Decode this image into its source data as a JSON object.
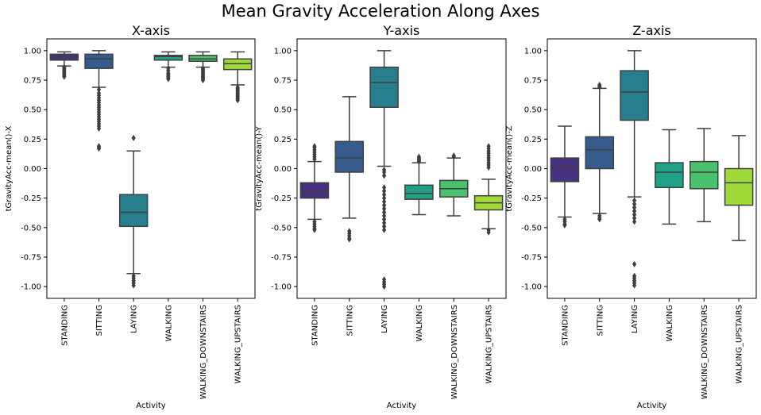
{
  "figure": {
    "title": "Mean Gravity Acceleration Along Axes"
  },
  "chart_data": [
    {
      "type": "box",
      "title": "X-axis",
      "xlabel": "Activity",
      "ylabel": "tGravityAcc-mean()-X",
      "ylim": [
        -1.1,
        1.1
      ],
      "yticks": [
        "-1.00",
        "-0.75",
        "-0.50",
        "-0.25",
        "0.00",
        "0.25",
        "0.50",
        "0.75",
        "1.00"
      ],
      "categories": [
        "STANDING",
        "SITTING",
        "LAYING",
        "WALKING",
        "WALKING_DOWNSTAIRS",
        "WALKING_UPSTAIRS"
      ],
      "colors": [
        "#46327e",
        "#365c8d",
        "#277f8e",
        "#1fa187",
        "#4ac16d",
        "#a0da39"
      ],
      "boxes": [
        {
          "q1": 0.92,
          "median": 0.95,
          "q3": 0.97,
          "whislo": 0.87,
          "whishi": 0.99,
          "fliers": [
            0.86,
            0.85,
            0.84,
            0.83,
            0.82,
            0.81,
            0.8,
            0.79,
            0.78
          ]
        },
        {
          "q1": 0.85,
          "median": 0.93,
          "q3": 0.97,
          "whislo": 0.69,
          "whishi": 1.0,
          "fliers": [
            0.67,
            0.64,
            0.62,
            0.6,
            0.58,
            0.56,
            0.54,
            0.52,
            0.5,
            0.48,
            0.46,
            0.44,
            0.42,
            0.4,
            0.38,
            0.36,
            0.34,
            0.19,
            0.18,
            0.17
          ]
        },
        {
          "q1": -0.49,
          "median": -0.37,
          "q3": -0.22,
          "whislo": -0.89,
          "whishi": 0.15,
          "fliers": [
            0.26,
            -0.91,
            -0.93,
            -0.95,
            -0.97,
            -0.99
          ]
        },
        {
          "q1": 0.92,
          "median": 0.95,
          "q3": 0.96,
          "whislo": 0.86,
          "whishi": 0.99,
          "fliers": [
            0.85,
            0.83,
            0.81,
            0.8,
            0.79,
            0.78,
            0.77,
            0.76
          ]
        },
        {
          "q1": 0.91,
          "median": 0.93,
          "q3": 0.96,
          "whislo": 0.86,
          "whishi": 0.99,
          "fliers": [
            0.85,
            0.84,
            0.83,
            0.82,
            0.81,
            0.8,
            0.79,
            0.78,
            0.77,
            0.76,
            0.75
          ]
        },
        {
          "q1": 0.84,
          "median": 0.89,
          "q3": 0.93,
          "whislo": 0.71,
          "whishi": 0.99,
          "fliers": [
            0.69,
            0.68,
            0.67,
            0.66,
            0.65,
            0.64,
            0.63,
            0.62,
            0.61,
            0.6,
            0.59,
            0.58
          ]
        }
      ]
    },
    {
      "type": "box",
      "title": "Y-axis",
      "xlabel": "Activity",
      "ylabel": "tGravityAcc-mean()-Y",
      "ylim": [
        -1.1,
        1.1
      ],
      "yticks": [
        "-1.00",
        "-0.75",
        "-0.50",
        "-0.25",
        "0.00",
        "0.25",
        "0.50",
        "0.75",
        "1.00"
      ],
      "categories": [
        "STANDING",
        "SITTING",
        "LAYING",
        "WALKING",
        "WALKING_DOWNSTAIRS",
        "WALKING_UPSTAIRS"
      ],
      "colors": [
        "#46327e",
        "#365c8d",
        "#277f8e",
        "#1fa187",
        "#4ac16d",
        "#a0da39"
      ],
      "boxes": [
        {
          "q1": -0.25,
          "median": -0.19,
          "q3": -0.12,
          "whislo": -0.43,
          "whishi": 0.06,
          "fliers": [
            0.08,
            0.1,
            0.12,
            0.14,
            0.16,
            0.18,
            0.19,
            -0.45,
            -0.47,
            -0.49,
            -0.51,
            -0.52
          ]
        },
        {
          "q1": -0.03,
          "median": 0.09,
          "q3": 0.23,
          "whislo": -0.42,
          "whishi": 0.61,
          "fliers": [
            -0.53,
            -0.55,
            -0.57,
            -0.59,
            -0.6
          ]
        },
        {
          "q1": 0.52,
          "median": 0.73,
          "q3": 0.86,
          "whislo": 0.02,
          "whishi": 1.0,
          "fliers": [
            -0.01,
            -0.03,
            -0.06,
            -0.16,
            -0.19,
            -0.22,
            -0.25,
            -0.28,
            -0.31,
            -0.34,
            -0.37,
            -0.4,
            -0.43,
            -0.46,
            -0.49,
            -0.52,
            -0.94,
            -0.96,
            -0.98,
            -1.0
          ]
        },
        {
          "q1": -0.26,
          "median": -0.21,
          "q3": -0.14,
          "whislo": -0.39,
          "whishi": 0.05,
          "fliers": [
            0.06,
            0.07,
            0.08,
            0.09,
            0.1
          ]
        },
        {
          "q1": -0.24,
          "median": -0.17,
          "q3": -0.1,
          "whislo": -0.4,
          "whishi": 0.09,
          "fliers": [
            0.1,
            0.11
          ]
        },
        {
          "q1": -0.35,
          "median": -0.29,
          "q3": -0.23,
          "whislo": -0.51,
          "whishi": -0.09,
          "fliers": [
            0.19,
            0.17,
            0.15,
            0.13,
            0.11,
            0.09,
            0.07,
            0.05,
            0.03,
            0.01,
            -0.52,
            -0.54
          ]
        }
      ]
    },
    {
      "type": "box",
      "title": "Z-axis",
      "xlabel": "Activity",
      "ylabel": "tGravityAcc-mean()-Z",
      "ylim": [
        -1.1,
        1.1
      ],
      "yticks": [
        "-1.00",
        "-0.75",
        "-0.50",
        "-0.25",
        "0.00",
        "0.25",
        "0.50",
        "0.75",
        "1.00"
      ],
      "categories": [
        "STANDING",
        "SITTING",
        "LAYING",
        "WALKING",
        "WALKING_DOWNSTAIRS",
        "WALKING_UPSTAIRS"
      ],
      "colors": [
        "#46327e",
        "#365c8d",
        "#277f8e",
        "#1fa187",
        "#4ac16d",
        "#a0da39"
      ],
      "boxes": [
        {
          "q1": -0.11,
          "median": 0.01,
          "q3": 0.09,
          "whislo": -0.41,
          "whishi": 0.36,
          "fliers": [
            -0.43,
            -0.45,
            -0.47,
            -0.48
          ]
        },
        {
          "q1": 0.0,
          "median": 0.16,
          "q3": 0.27,
          "whislo": -0.38,
          "whishi": 0.68,
          "fliers": [
            0.69,
            0.7,
            0.71,
            -0.4,
            -0.42,
            -0.43
          ]
        },
        {
          "q1": 0.41,
          "median": 0.65,
          "q3": 0.83,
          "whislo": -0.24,
          "whishi": 1.0,
          "fliers": [
            -0.27,
            -0.3,
            -0.33,
            -0.36,
            -0.39,
            -0.42,
            -0.45,
            -0.81,
            -0.91,
            -0.93,
            -0.95,
            -0.97,
            -0.99
          ]
        },
        {
          "q1": -0.16,
          "median": -0.03,
          "q3": 0.05,
          "whislo": -0.47,
          "whishi": 0.33,
          "fliers": []
        },
        {
          "q1": -0.17,
          "median": -0.03,
          "q3": 0.06,
          "whislo": -0.45,
          "whishi": 0.34,
          "fliers": []
        },
        {
          "q1": -0.31,
          "median": -0.12,
          "q3": 0.0,
          "whislo": -0.61,
          "whishi": 0.28,
          "fliers": []
        }
      ]
    }
  ]
}
